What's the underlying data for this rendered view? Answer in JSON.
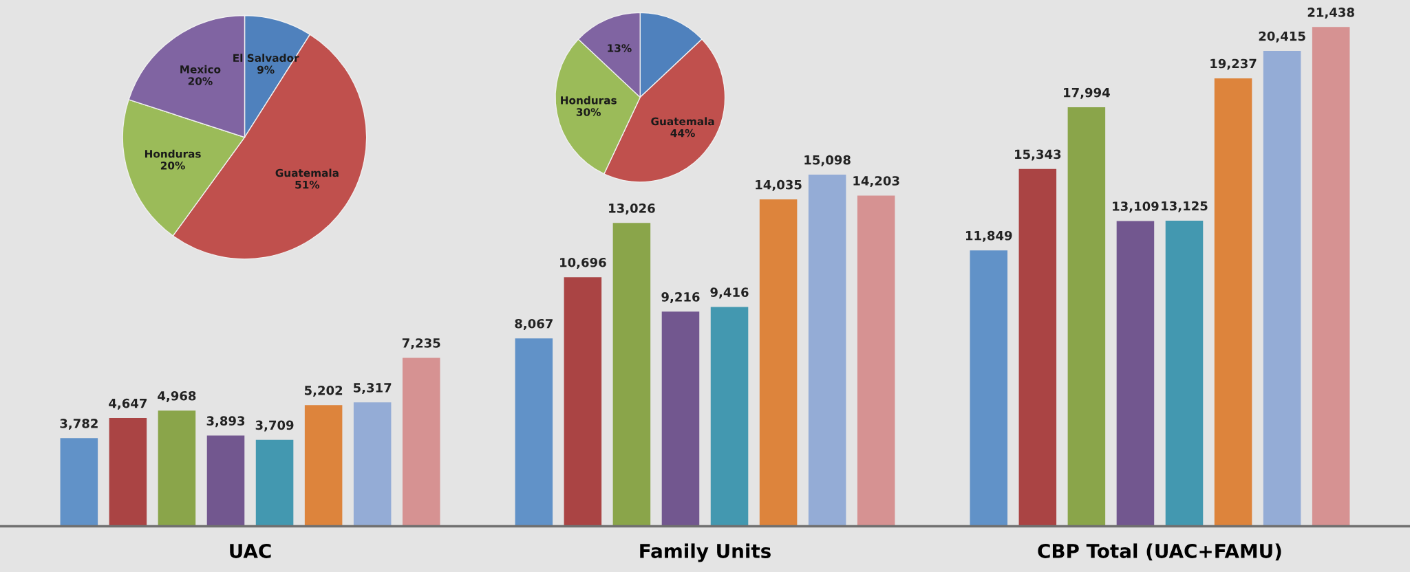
{
  "chart_data": [
    {
      "type": "bar",
      "categories": [
        "UAC",
        "Family Units",
        "CBP Total (UAC+FAMU)"
      ],
      "ylim": [
        0,
        22600
      ],
      "tick_labels": "x",
      "grid": false,
      "legend": false,
      "series": [
        {
          "color": "#6192c8",
          "values": [
            3782,
            8067,
            11849
          ],
          "value_labels": [
            "3,782",
            "8,067",
            "11,849"
          ]
        },
        {
          "color": "#aa4444",
          "values": [
            4647,
            10696,
            15343
          ],
          "value_labels": [
            "4,647",
            "10,696",
            "15,343"
          ]
        },
        {
          "color": "#8aa54a",
          "values": [
            4968,
            13026,
            17994
          ],
          "value_labels": [
            "4,968",
            "13,026",
            "17,994"
          ]
        },
        {
          "color": "#72578f",
          "values": [
            3893,
            9216,
            13109
          ],
          "value_labels": [
            "3,893",
            "9,216",
            "13,109"
          ]
        },
        {
          "color": "#4398b0",
          "values": [
            3709,
            9416,
            13125
          ],
          "value_labels": [
            "3,709",
            "9,416",
            "13,125"
          ]
        },
        {
          "color": "#dd843c",
          "values": [
            5202,
            14035,
            19237
          ],
          "value_labels": [
            "5,202",
            "14,035",
            "19,237"
          ]
        },
        {
          "color": "#94acd6",
          "values": [
            5317,
            15098,
            20415
          ],
          "value_labels": [
            "5,317",
            "15,098",
            "20,415"
          ]
        },
        {
          "color": "#d69292",
          "values": [
            7235,
            14203,
            21438
          ],
          "value_labels": [
            "7,235",
            "14,203",
            "21,438"
          ]
        }
      ]
    },
    {
      "type": "pie",
      "categories": [
        "El Salvador",
        "Guatemala",
        "Honduras",
        "Mexico"
      ],
      "values": [
        9,
        51,
        20,
        20
      ],
      "value_labels": [
        "9%",
        "51%",
        "20%",
        "20%"
      ],
      "colors": [
        "#4f81bd",
        "#c0504d",
        "#9bbb59",
        "#8064a2"
      ]
    },
    {
      "type": "pie",
      "categories": [
        null,
        "Guatemala",
        "Honduras",
        null
      ],
      "values": [
        13,
        44,
        30,
        13
      ],
      "value_labels": [
        null,
        "44%",
        "30%",
        "13%"
      ],
      "colors": [
        "#4f81bd",
        "#c0504d",
        "#9bbb59",
        "#8064a2"
      ]
    }
  ]
}
